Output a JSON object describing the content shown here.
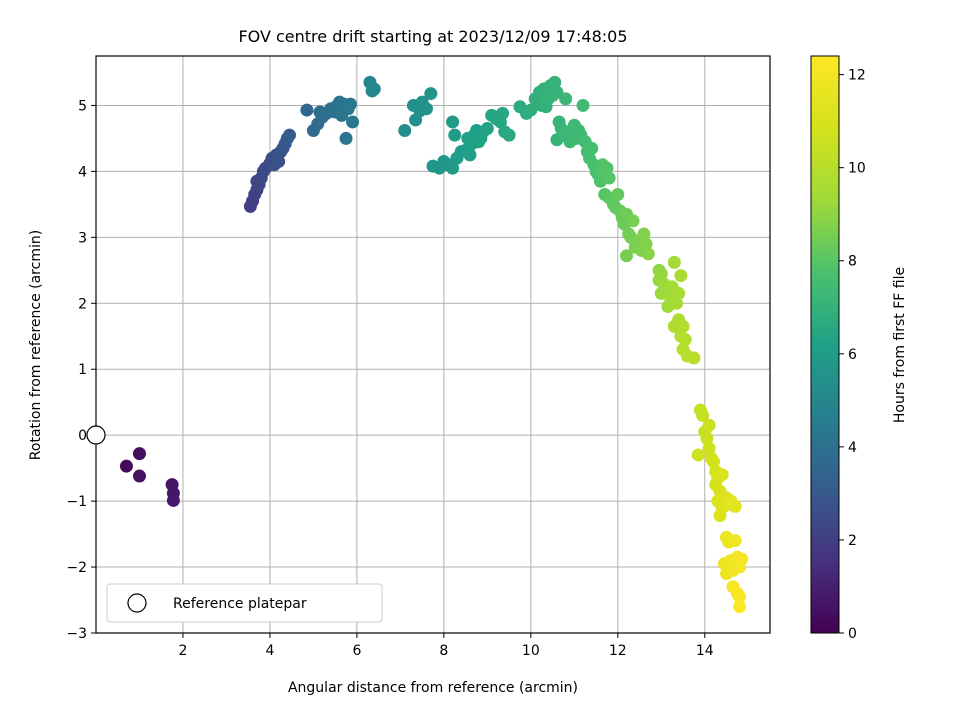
{
  "chart_data": {
    "type": "scatter",
    "title": "FOV centre drift starting at 2023/12/09 17:48:05",
    "xlabel": "Angular distance from reference (arcmin)",
    "ylabel": "Rotation from reference (arcmin)",
    "xlim": [
      0,
      15.5
    ],
    "ylim": [
      -3,
      5.75
    ],
    "xticks": [
      "2",
      "4",
      "6",
      "8",
      "10",
      "12",
      "14"
    ],
    "yticks": [
      "−3",
      "−2",
      "−1",
      "0",
      "1",
      "2",
      "3",
      "4",
      "5"
    ],
    "grid": true,
    "colorbar": {
      "label": "Hours from first FF file",
      "range": [
        0,
        12.4
      ],
      "ticks": [
        "0",
        "2",
        "4",
        "6",
        "8",
        "10",
        "12"
      ],
      "colormap": "viridis"
    },
    "legend": {
      "position": "lower-left",
      "entries": [
        "Reference platepar"
      ]
    },
    "reference_point": {
      "x": 0,
      "y": 0
    },
    "points": [
      [
        0.7,
        -0.47,
        0.3
      ],
      [
        1.0,
        -0.28,
        0.4
      ],
      [
        1.0,
        -0.62,
        0.5
      ],
      [
        1.75,
        -0.75,
        0.6
      ],
      [
        1.78,
        -0.88,
        0.7
      ],
      [
        1.78,
        -0.99,
        0.8
      ],
      [
        3.55,
        3.47,
        2.0
      ],
      [
        3.6,
        3.55,
        2.05
      ],
      [
        3.65,
        3.65,
        2.1
      ],
      [
        3.7,
        3.72,
        2.15
      ],
      [
        3.75,
        3.8,
        2.2
      ],
      [
        3.7,
        3.85,
        2.25
      ],
      [
        3.8,
        3.9,
        2.3
      ],
      [
        3.85,
        4.0,
        2.4
      ],
      [
        3.9,
        4.05,
        2.45
      ],
      [
        4.0,
        4.12,
        2.5
      ],
      [
        4.05,
        4.2,
        2.55
      ],
      [
        4.1,
        4.1,
        2.6
      ],
      [
        4.15,
        4.25,
        2.65
      ],
      [
        4.2,
        4.15,
        2.7
      ],
      [
        4.25,
        4.3,
        2.75
      ],
      [
        4.3,
        4.35,
        2.8
      ],
      [
        4.35,
        4.42,
        2.9
      ],
      [
        4.4,
        4.5,
        3.0
      ],
      [
        4.45,
        4.55,
        3.1
      ],
      [
        4.85,
        4.93,
        3.6
      ],
      [
        5.0,
        4.62,
        3.7
      ],
      [
        5.1,
        4.72,
        3.75
      ],
      [
        5.2,
        4.82,
        3.8
      ],
      [
        5.15,
        4.9,
        3.85
      ],
      [
        5.3,
        4.88,
        3.9
      ],
      [
        5.4,
        4.95,
        3.95
      ],
      [
        5.5,
        4.9,
        4.0
      ],
      [
        5.55,
        5.0,
        4.05
      ],
      [
        5.6,
        5.05,
        4.1
      ],
      [
        5.65,
        4.85,
        4.15
      ],
      [
        5.7,
        5.02,
        4.2
      ],
      [
        5.75,
        4.5,
        4.25
      ],
      [
        5.8,
        4.95,
        4.3
      ],
      [
        5.85,
        5.02,
        4.35
      ],
      [
        5.9,
        4.75,
        4.4
      ],
      [
        6.3,
        5.35,
        4.9
      ],
      [
        6.35,
        5.22,
        4.95
      ],
      [
        6.4,
        5.25,
        5.0
      ],
      [
        7.1,
        4.62,
        5.3
      ],
      [
        7.3,
        5.0,
        5.35
      ],
      [
        7.35,
        4.78,
        5.4
      ],
      [
        7.45,
        4.92,
        5.45
      ],
      [
        7.5,
        5.05,
        5.5
      ],
      [
        7.6,
        4.95,
        5.55
      ],
      [
        7.7,
        5.18,
        5.6
      ],
      [
        7.75,
        4.08,
        5.7
      ],
      [
        7.9,
        4.05,
        5.75
      ],
      [
        8.0,
        4.15,
        5.8
      ],
      [
        8.1,
        4.1,
        5.85
      ],
      [
        8.2,
        4.05,
        5.9
      ],
      [
        8.3,
        4.2,
        5.95
      ],
      [
        8.2,
        4.75,
        5.9
      ],
      [
        8.25,
        4.55,
        5.95
      ],
      [
        8.4,
        4.3,
        6.0
      ],
      [
        8.5,
        4.32,
        6.05
      ],
      [
        8.55,
        4.5,
        6.1
      ],
      [
        8.6,
        4.25,
        6.1
      ],
      [
        8.65,
        4.42,
        6.15
      ],
      [
        8.7,
        4.55,
        6.15
      ],
      [
        8.75,
        4.62,
        6.2
      ],
      [
        8.8,
        4.45,
        6.2
      ],
      [
        8.85,
        4.5,
        6.25
      ],
      [
        8.9,
        4.6,
        6.25
      ],
      [
        9.0,
        4.65,
        6.3
      ],
      [
        9.1,
        4.85,
        6.35
      ],
      [
        9.2,
        4.8,
        6.4
      ],
      [
        9.3,
        4.75,
        6.45
      ],
      [
        9.35,
        4.88,
        6.45
      ],
      [
        9.4,
        4.6,
        6.5
      ],
      [
        9.5,
        4.55,
        6.55
      ],
      [
        9.75,
        4.98,
        6.7
      ],
      [
        9.9,
        4.88,
        6.75
      ],
      [
        10.0,
        4.93,
        6.8
      ],
      [
        10.1,
        5.1,
        6.85
      ],
      [
        10.2,
        5.2,
        6.9
      ],
      [
        10.25,
        5.0,
        6.9
      ],
      [
        10.3,
        5.25,
        6.95
      ],
      [
        10.35,
        4.98,
        6.95
      ],
      [
        10.4,
        5.1,
        7.0
      ],
      [
        10.45,
        5.3,
        7.0
      ],
      [
        10.5,
        5.15,
        7.05
      ],
      [
        10.55,
        5.35,
        7.05
      ],
      [
        10.6,
        5.2,
        7.1
      ],
      [
        10.6,
        4.48,
        7.1
      ],
      [
        10.65,
        4.75,
        7.15
      ],
      [
        10.7,
        4.65,
        7.15
      ],
      [
        10.75,
        4.55,
        7.2
      ],
      [
        10.8,
        5.1,
        7.2
      ],
      [
        10.85,
        4.6,
        7.25
      ],
      [
        10.9,
        4.45,
        7.3
      ],
      [
        10.95,
        4.55,
        7.3
      ],
      [
        11.0,
        4.7,
        7.35
      ],
      [
        11.05,
        4.5,
        7.35
      ],
      [
        11.1,
        4.62,
        7.4
      ],
      [
        11.15,
        4.55,
        7.4
      ],
      [
        11.2,
        5.0,
        7.45
      ],
      [
        11.25,
        4.45,
        7.5
      ],
      [
        11.3,
        4.3,
        7.55
      ],
      [
        11.35,
        4.2,
        7.6
      ],
      [
        11.4,
        4.35,
        7.6
      ],
      [
        11.45,
        4.1,
        7.65
      ],
      [
        11.5,
        4.0,
        7.7
      ],
      [
        11.55,
        3.95,
        7.75
      ],
      [
        11.6,
        3.85,
        7.8
      ],
      [
        11.65,
        4.1,
        7.85
      ],
      [
        11.7,
        4.0,
        7.9
      ],
      [
        11.75,
        4.05,
        7.9
      ],
      [
        11.8,
        3.9,
        7.95
      ],
      [
        11.7,
        3.65,
        8.0
      ],
      [
        11.8,
        3.6,
        8.05
      ],
      [
        11.9,
        3.5,
        8.1
      ],
      [
        11.95,
        3.45,
        8.15
      ],
      [
        12.0,
        3.65,
        8.2
      ],
      [
        12.05,
        3.4,
        8.25
      ],
      [
        12.1,
        3.3,
        8.3
      ],
      [
        12.15,
        3.2,
        8.35
      ],
      [
        12.2,
        3.35,
        8.4
      ],
      [
        12.25,
        3.05,
        8.45
      ],
      [
        12.3,
        3.0,
        8.5
      ],
      [
        12.2,
        2.72,
        8.5
      ],
      [
        12.35,
        3.25,
        8.55
      ],
      [
        12.4,
        2.85,
        8.6
      ],
      [
        12.5,
        2.95,
        8.65
      ],
      [
        12.55,
        2.8,
        8.7
      ],
      [
        12.6,
        3.05,
        8.75
      ],
      [
        12.65,
        2.9,
        8.8
      ],
      [
        12.7,
        2.75,
        8.85
      ],
      [
        12.95,
        2.5,
        9.0
      ],
      [
        12.95,
        2.35,
        9.05
      ],
      [
        13.0,
        2.45,
        9.1
      ],
      [
        13.0,
        2.15,
        9.15
      ],
      [
        13.05,
        2.3,
        9.2
      ],
      [
        13.1,
        2.2,
        9.25
      ],
      [
        13.15,
        1.95,
        9.3
      ],
      [
        13.2,
        2.1,
        9.35
      ],
      [
        13.25,
        2.25,
        9.4
      ],
      [
        13.3,
        2.62,
        9.45
      ],
      [
        13.35,
        2.0,
        9.5
      ],
      [
        13.4,
        2.15,
        9.55
      ],
      [
        13.45,
        2.42,
        9.6
      ],
      [
        13.3,
        1.65,
        9.7
      ],
      [
        13.4,
        1.75,
        9.75
      ],
      [
        13.45,
        1.5,
        9.8
      ],
      [
        13.5,
        1.65,
        9.85
      ],
      [
        13.5,
        1.3,
        9.9
      ],
      [
        13.55,
        1.45,
        9.95
      ],
      [
        13.6,
        1.2,
        10.0
      ],
      [
        13.75,
        1.17,
        10.05
      ],
      [
        13.9,
        0.38,
        10.4
      ],
      [
        13.95,
        0.3,
        10.45
      ],
      [
        14.0,
        0.05,
        10.5
      ],
      [
        14.05,
        -0.05,
        10.55
      ],
      [
        14.1,
        0.15,
        10.6
      ],
      [
        13.85,
        -0.3,
        10.65
      ],
      [
        14.1,
        -0.2,
        10.7
      ],
      [
        14.15,
        -0.35,
        10.75
      ],
      [
        14.2,
        -0.4,
        10.8
      ],
      [
        14.25,
        -0.55,
        10.85
      ],
      [
        14.25,
        -0.75,
        10.9
      ],
      [
        14.3,
        -0.65,
        10.95
      ],
      [
        14.35,
        -0.85,
        11.0
      ],
      [
        14.4,
        -0.6,
        11.05
      ],
      [
        14.3,
        -1.0,
        11.1
      ],
      [
        14.4,
        -1.1,
        11.15
      ],
      [
        14.35,
        -1.22,
        11.2
      ],
      [
        14.5,
        -0.95,
        11.25
      ],
      [
        14.55,
        -1.05,
        11.3
      ],
      [
        14.6,
        -1.0,
        11.35
      ],
      [
        14.7,
        -1.08,
        11.4
      ],
      [
        14.5,
        -1.55,
        11.7
      ],
      [
        14.55,
        -1.62,
        11.75
      ],
      [
        14.45,
        -1.95,
        11.8
      ],
      [
        14.5,
        -2.1,
        11.85
      ],
      [
        14.6,
        -1.9,
        11.9
      ],
      [
        14.65,
        -2.05,
        11.95
      ],
      [
        14.7,
        -1.6,
        12.0
      ],
      [
        14.75,
        -1.85,
        12.05
      ],
      [
        14.8,
        -2.0,
        12.1
      ],
      [
        14.85,
        -1.88,
        12.15
      ],
      [
        14.65,
        -2.3,
        12.2
      ],
      [
        14.75,
        -2.4,
        12.25
      ],
      [
        14.8,
        -2.45,
        12.3
      ],
      [
        14.8,
        -2.6,
        12.35
      ]
    ]
  }
}
